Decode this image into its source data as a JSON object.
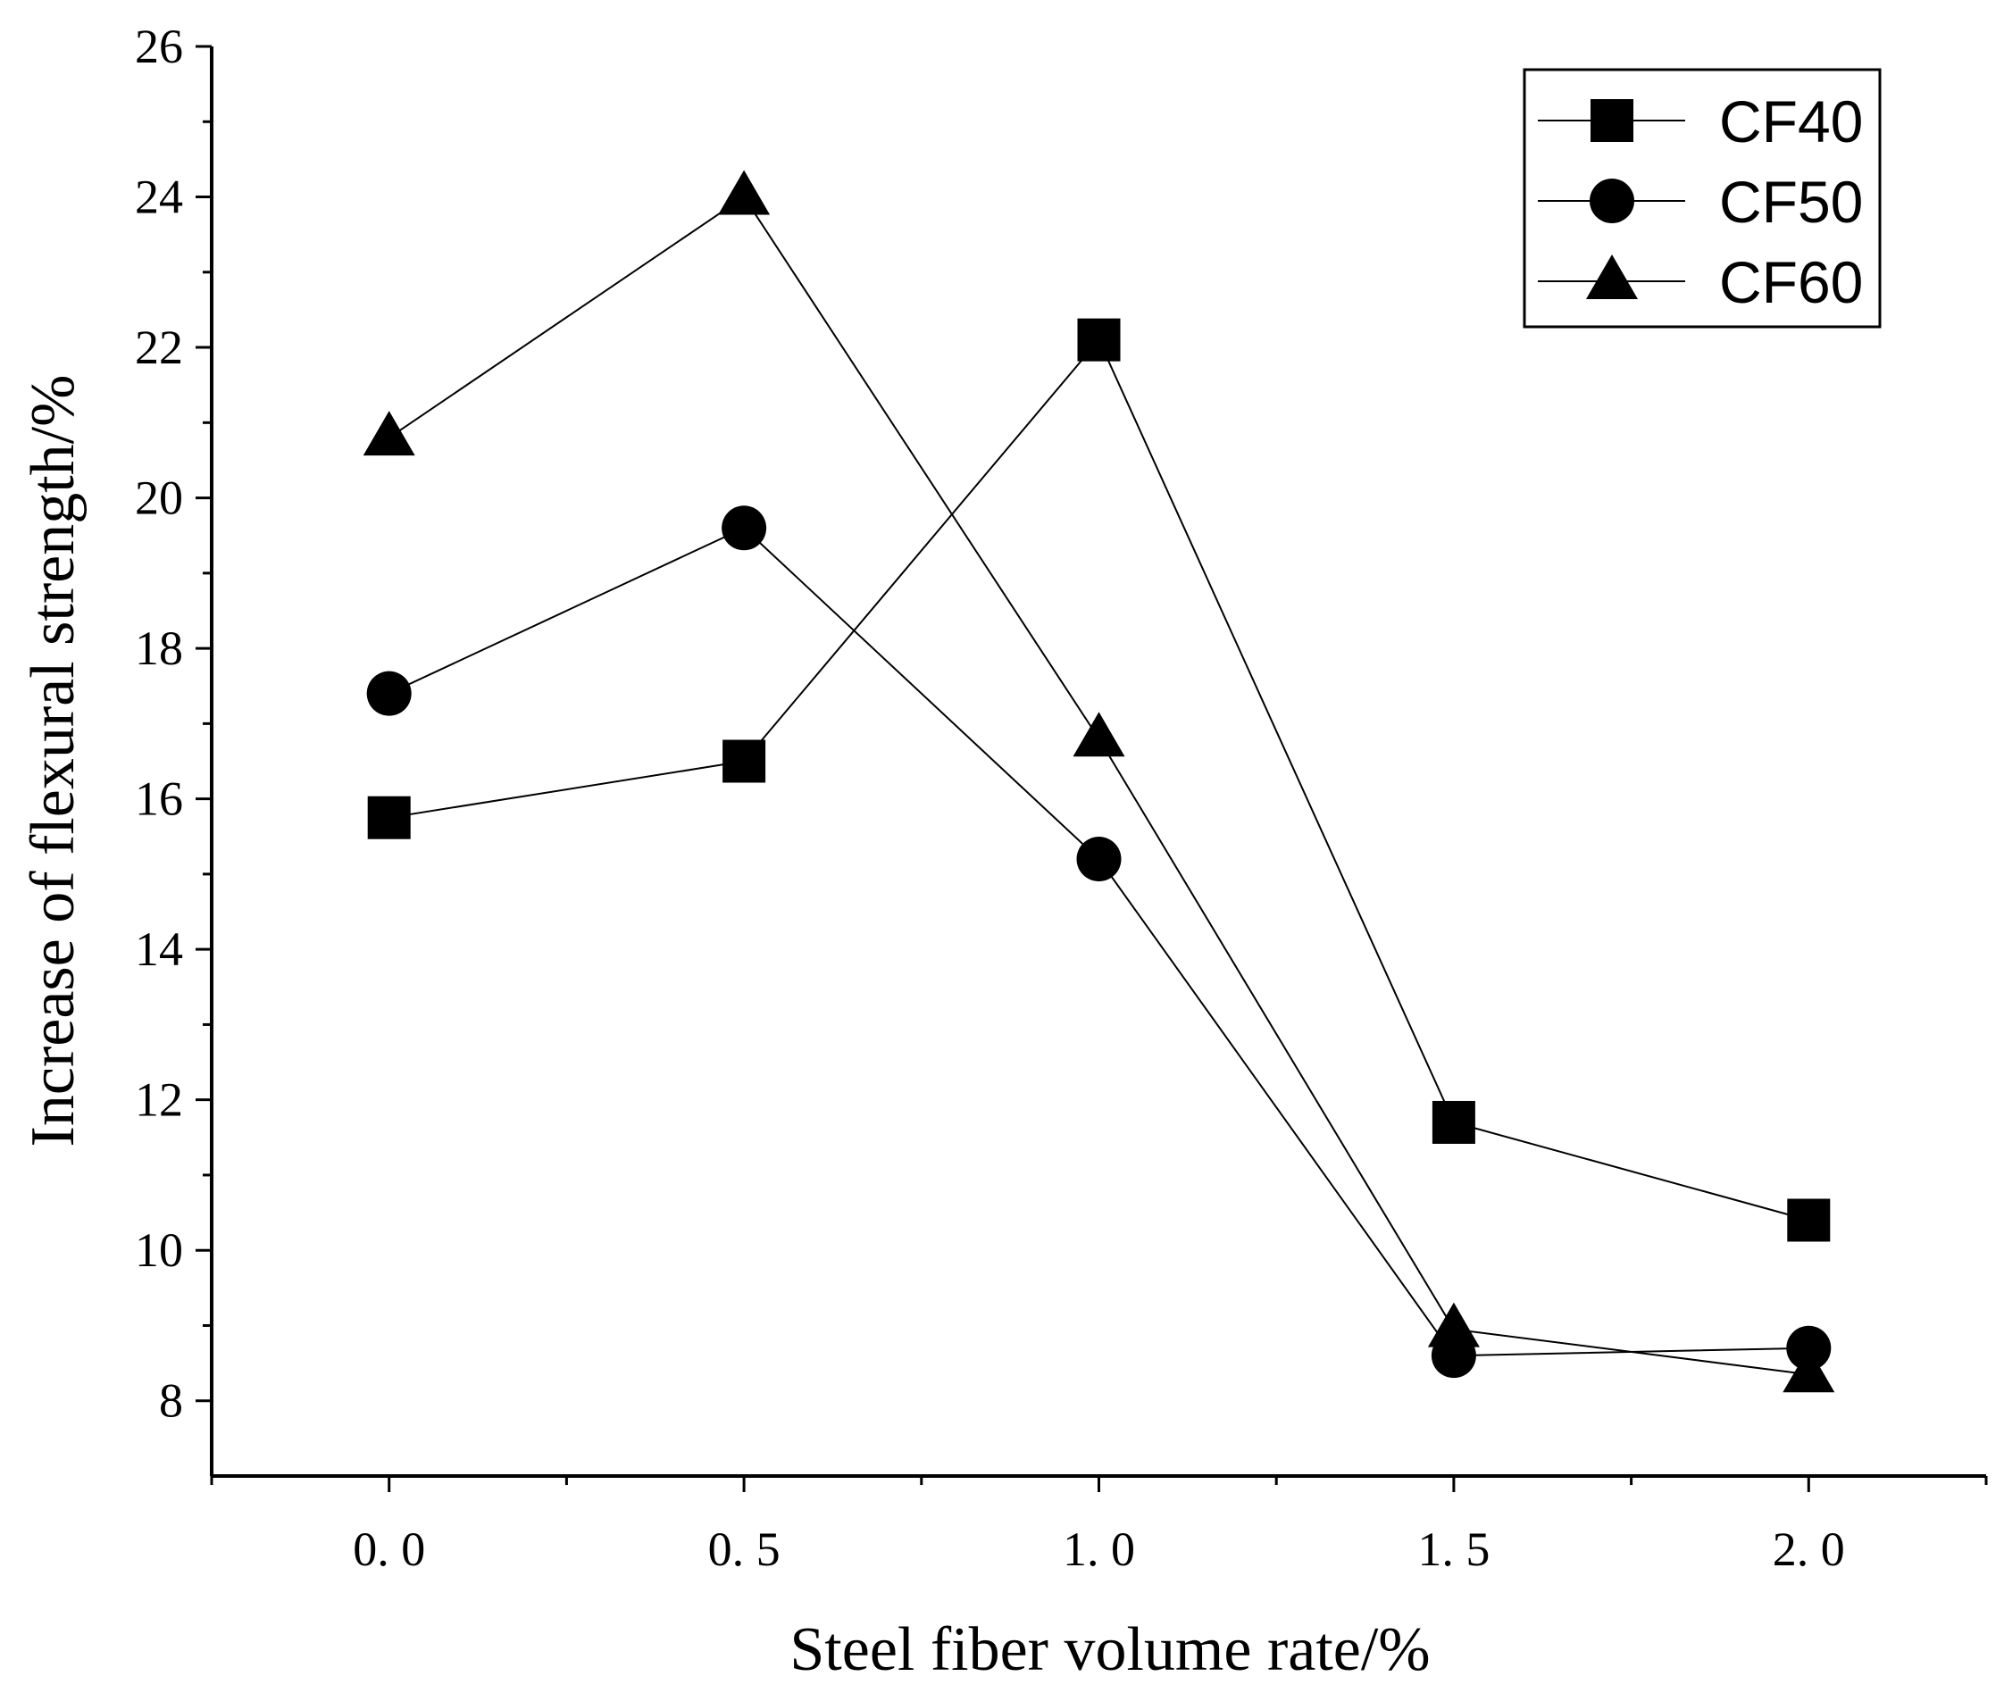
{
  "chart_data": {
    "type": "line",
    "title": "",
    "xlabel": "Steel fiber volume rate/%",
    "ylabel": "Increase of flexural strength/%",
    "x": [
      0.0,
      0.5,
      1.0,
      1.5,
      2.0
    ],
    "x_tick_labels": [
      "0. 0",
      "0. 5",
      "1. 0",
      "1. 5",
      "2. 0"
    ],
    "y_tick_labels": [
      "8",
      "10",
      "12",
      "14",
      "16",
      "18",
      "20",
      "22",
      "24",
      "26"
    ],
    "xlim": [
      -0.25,
      2.25
    ],
    "ylim": [
      7,
      26
    ],
    "grid": false,
    "legend_position": "top-right",
    "series": [
      {
        "name": "CF40",
        "marker": "square",
        "values": [
          15.75,
          16.5,
          22.1,
          11.7,
          10.4
        ]
      },
      {
        "name": "CF50",
        "marker": "circle",
        "values": [
          17.4,
          19.6,
          15.2,
          8.6,
          8.7
        ]
      },
      {
        "name": "CF60",
        "marker": "triangle",
        "values": [
          20.8,
          24.0,
          16.8,
          8.95,
          8.35
        ]
      }
    ],
    "colors": {
      "line": "#000000",
      "marker": "#000000"
    }
  }
}
